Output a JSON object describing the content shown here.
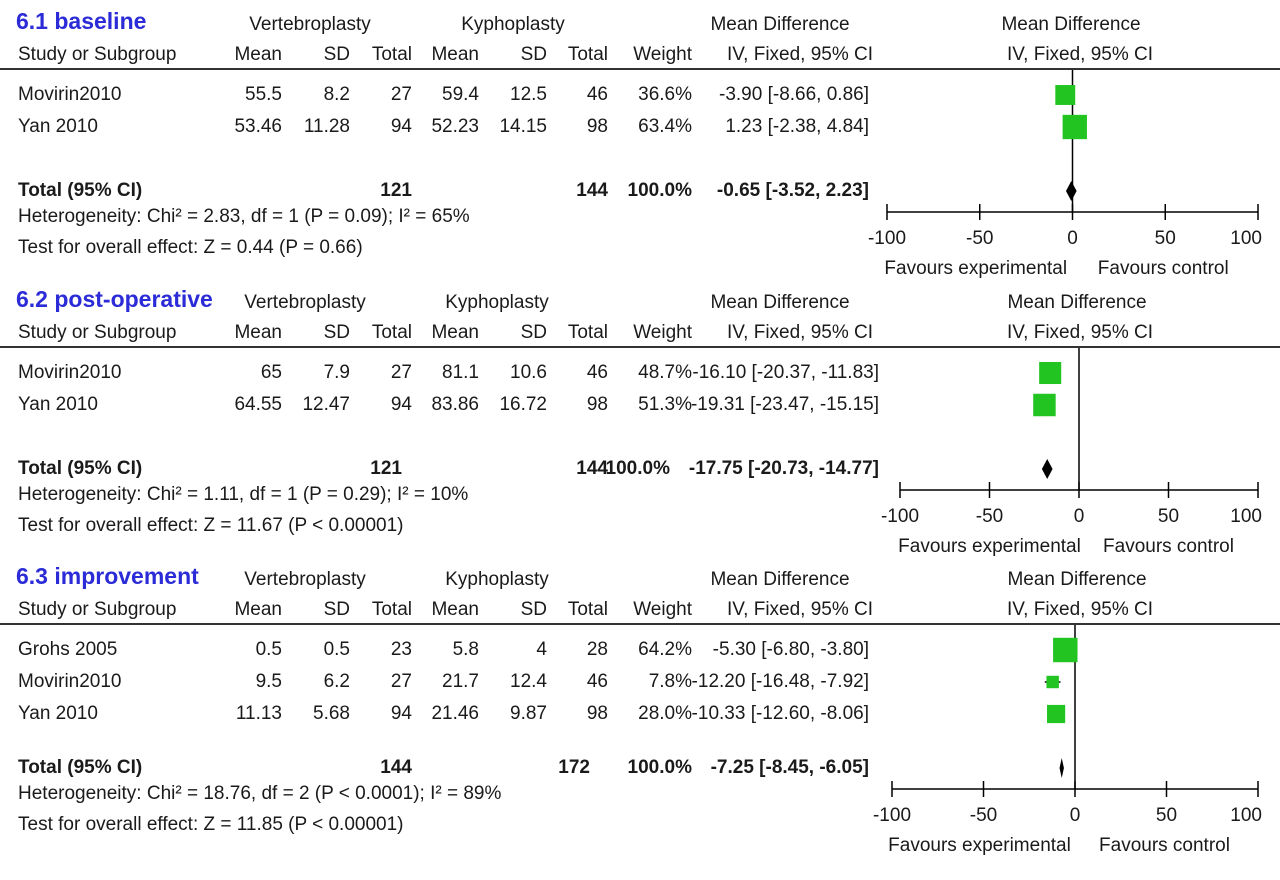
{
  "columns": {
    "group1": "Vertebroplasty",
    "group2": "Kyphoplasty",
    "md_header": "Mean Difference",
    "md_sub": "IV, Fixed, 95% CI",
    "study": "Study or Subgroup",
    "mean": "Mean",
    "sd": "SD",
    "total": "Total",
    "weight": "Weight"
  },
  "sections": [
    {
      "title": "6.1 baseline",
      "studies": [
        {
          "name": "Movirin2010",
          "m1": "55.5",
          "sd1": "8.2",
          "n1": "27",
          "m2": "59.4",
          "sd2": "12.5",
          "n2": "46",
          "weight": "36.6%",
          "ci": "-3.90 [-8.66, 0.86]"
        },
        {
          "name": "Yan 2010",
          "m1": "53.46",
          "sd1": "11.28",
          "n1": "94",
          "m2": "52.23",
          "sd2": "14.15",
          "n2": "98",
          "weight": "63.4%",
          "ci": "1.23 [-2.38, 4.84]"
        }
      ],
      "total": {
        "label": "Total (95% CI)",
        "n1": "121",
        "n2": "144",
        "weight": "100.0%",
        "ci": "-0.65 [-3.52, 2.23]"
      },
      "heterogeneity": "Heterogeneity: Chi² = 2.83, df = 1 (P = 0.09); I² = 65%",
      "overall": "Test for overall effect: Z = 0.44 (P = 0.66)"
    },
    {
      "title": "6.2 post-operative",
      "studies": [
        {
          "name": "Movirin2010",
          "m1": "65",
          "sd1": "7.9",
          "n1": "27",
          "m2": "81.1",
          "sd2": "10.6",
          "n2": "46",
          "weight": "48.7%",
          "ci": "-16.10 [-20.37, -11.83]"
        },
        {
          "name": "Yan 2010",
          "m1": "64.55",
          "sd1": "12.47",
          "n1": "94",
          "m2": "83.86",
          "sd2": "16.72",
          "n2": "98",
          "weight": "51.3%",
          "ci": "-19.31 [-23.47, -15.15]"
        }
      ],
      "total": {
        "label": "Total (95% CI)",
        "n1": "121",
        "n2": "144",
        "weight": "100.0%",
        "ci": "-17.75 [-20.73, -14.77]"
      },
      "heterogeneity": "Heterogeneity: Chi² = 1.11, df = 1 (P = 0.29); I² = 10%",
      "overall": "Test for overall effect: Z = 11.67 (P < 0.00001)"
    },
    {
      "title": "6.3 improvement",
      "studies": [
        {
          "name": "Grohs 2005",
          "m1": "0.5",
          "sd1": "0.5",
          "n1": "23",
          "m2": "5.8",
          "sd2": "4",
          "n2": "28",
          "weight": "64.2%",
          "ci": "-5.30 [-6.80, -3.80]"
        },
        {
          "name": "Movirin2010",
          "m1": "9.5",
          "sd1": "6.2",
          "n1": "27",
          "m2": "21.7",
          "sd2": "12.4",
          "n2": "46",
          "weight": "7.8%",
          "ci": "-12.20 [-16.48, -7.92]"
        },
        {
          "name": "Yan 2010",
          "m1": "11.13",
          "sd1": "5.68",
          "n1": "94",
          "m2": "21.46",
          "sd2": "9.87",
          "n2": "98",
          "weight": "28.0%",
          "ci": "-10.33 [-12.60, -8.06]"
        }
      ],
      "total": {
        "label": "Total (95% CI)",
        "n1": "144",
        "n2": "172",
        "weight": "100.0%",
        "ci": "-7.25 [-8.45, -6.05]"
      },
      "heterogeneity": "Heterogeneity: Chi² = 18.76, df = 2 (P < 0.0001); I² = 89%",
      "overall": "Test for overall effect: Z = 11.85 (P < 0.00001)"
    }
  ],
  "plot_labels": {
    "left": "Favours experimental",
    "right": "Favours control"
  },
  "colors": {
    "title": "#2b2bd8",
    "marker": "#22c422",
    "diamond": "#000000"
  },
  "chart_data": [
    {
      "type": "scatter",
      "title": "6.1 baseline",
      "xlim": [
        -100,
        100
      ],
      "xticks": [
        "-100",
        "-50",
        "0",
        "50",
        "100"
      ],
      "series": [
        {
          "x": [
            -3.9,
            1.23
          ],
          "ci_low": [
            -8.66,
            -2.38
          ],
          "ci_high": [
            0.86,
            4.84
          ],
          "weight": [
            36.6,
            63.4
          ]
        }
      ],
      "pooled": {
        "x": -0.65,
        "ci": [
          -3.52,
          2.23
        ]
      }
    },
    {
      "type": "scatter",
      "title": "6.2 post-operative",
      "xlim": [
        -100,
        100
      ],
      "xticks": [
        "-100",
        "-50",
        "0",
        "50",
        "100"
      ],
      "series": [
        {
          "x": [
            -16.1,
            -19.31
          ],
          "ci_low": [
            -20.37,
            -23.47
          ],
          "ci_high": [
            -11.83,
            -15.15
          ],
          "weight": [
            48.7,
            51.3
          ]
        }
      ],
      "pooled": {
        "x": -17.75,
        "ci": [
          -20.73,
          -14.77
        ]
      }
    },
    {
      "type": "scatter",
      "title": "6.3 improvement",
      "xlim": [
        -100,
        100
      ],
      "xticks": [
        "-100",
        "-50",
        "0",
        "50",
        "100"
      ],
      "series": [
        {
          "x": [
            -5.3,
            -12.2,
            -10.33
          ],
          "ci_low": [
            -6.8,
            -16.48,
            -12.6
          ],
          "ci_high": [
            -3.8,
            -7.92,
            -8.06
          ],
          "weight": [
            64.2,
            7.8,
            28.0
          ]
        }
      ],
      "pooled": {
        "x": -7.25,
        "ci": [
          -8.45,
          -6.05
        ]
      }
    }
  ]
}
